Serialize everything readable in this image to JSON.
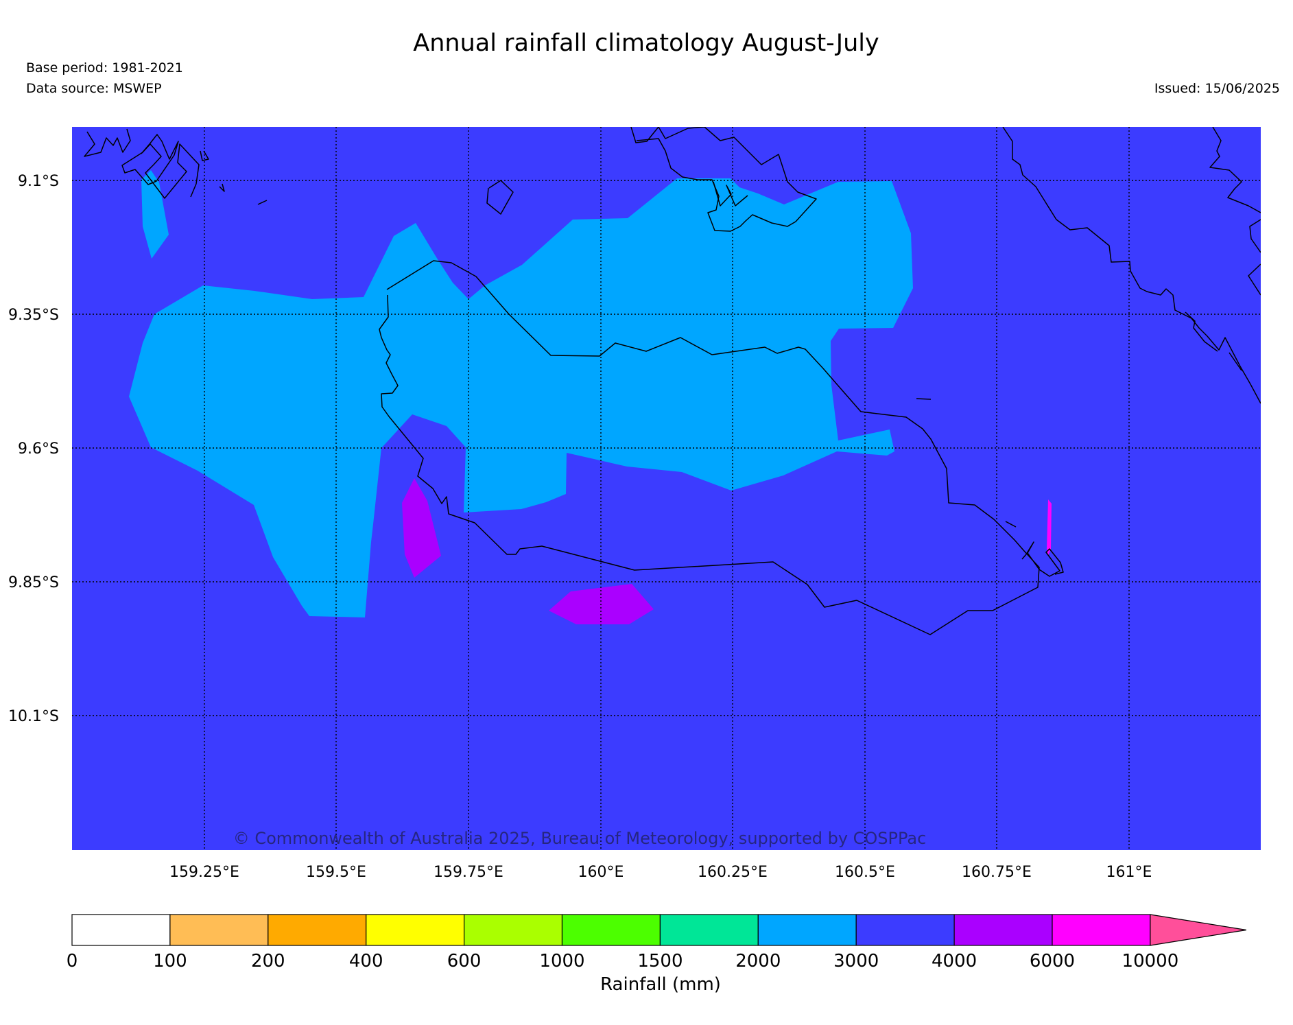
{
  "title": "Annual rainfall climatology August-July",
  "base_period": "Base period: 1981-2021",
  "data_source": "Data source: MSWEP",
  "issued": "Issued: 15/06/2025",
  "copyright": "© Commonwealth of Australia 2025, Bureau of Meteorology, supported by COSPPac",
  "map": {
    "lat_labels": [
      "9.1°S",
      "9.35°S",
      "9.6°S",
      "9.85°S",
      "10.1°S"
    ],
    "lon_labels": [
      "159.25°E",
      "159.5°E",
      "159.75°E",
      "160°E",
      "160.25°E",
      "160.5°E",
      "160.75°E",
      "161°E"
    ],
    "background_class": "3000-4000",
    "colors": {
      "band_3000_4000": "#3c3cff",
      "band_2000_3000": "#00a6ff",
      "band_4000_6000": "#aa00ff",
      "band_6000_10000": "#ff00ff"
    }
  },
  "colorbar": {
    "label": "Rainfall (mm)",
    "ticks": [
      "0",
      "100",
      "200",
      "400",
      "600",
      "1000",
      "1500",
      "2000",
      "3000",
      "4000",
      "6000",
      "10000"
    ],
    "colors": [
      "#ffffff",
      "#ffbd55",
      "#ffaa00",
      "#ffff00",
      "#aaff00",
      "#4cff00",
      "#00e697",
      "#00a6ff",
      "#3c3cff",
      "#aa00ff",
      "#ff00ff"
    ],
    "extend_color": "#ff4f9a"
  }
}
